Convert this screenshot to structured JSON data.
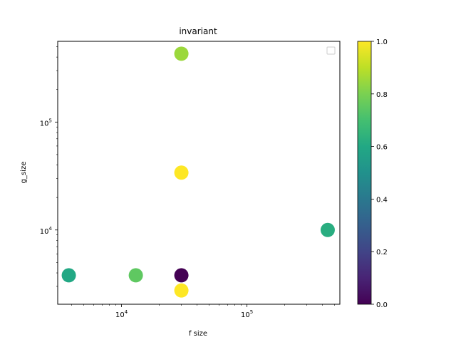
{
  "chart_data": {
    "type": "scatter",
    "title": "invariant",
    "xlabel": "f size",
    "ylabel": "g_size",
    "xscale": "log",
    "yscale": "log",
    "xlim": [
      3100,
      550000
    ],
    "ylim": [
      2050,
      560000
    ],
    "x_ticks": [
      {
        "value": 10000,
        "base": "10",
        "exp": "4"
      },
      {
        "value": 100000,
        "base": "10",
        "exp": "5"
      }
    ],
    "y_ticks": [
      {
        "value": 10000,
        "base": "10",
        "exp": "4"
      },
      {
        "value": 100000,
        "base": "10",
        "exp": "5"
      }
    ],
    "points": [
      {
        "x": 3800,
        "y": 3800,
        "c": 0.6
      },
      {
        "x": 13000,
        "y": 3800,
        "c": 0.75
      },
      {
        "x": 30000,
        "y": 3800,
        "c": 0.0
      },
      {
        "x": 30000,
        "y": 2750,
        "c": 1.0
      },
      {
        "x": 30000,
        "y": 34000,
        "c": 1.0
      },
      {
        "x": 30000,
        "y": 430000,
        "c": 0.85
      },
      {
        "x": 440000,
        "y": 10000,
        "c": 0.62
      }
    ],
    "colorbar": {
      "colormap": "viridis",
      "range": [
        0.0,
        1.0
      ],
      "ticks": [
        "0.0",
        "0.2",
        "0.4",
        "0.6",
        "0.8",
        "1.0"
      ]
    },
    "legend": {
      "placement": "upper-right",
      "entries": []
    },
    "grid": false
  }
}
